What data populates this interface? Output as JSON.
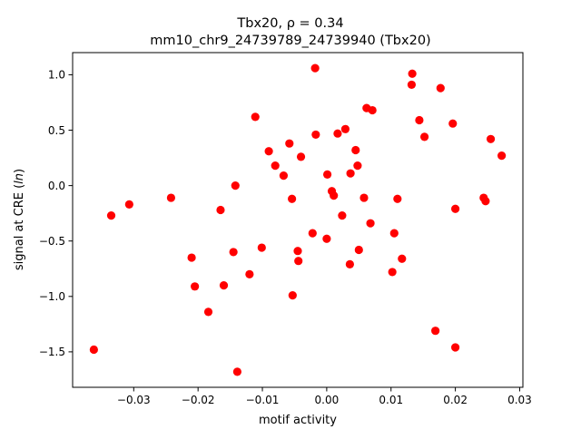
{
  "chart_data": {
    "type": "scatter",
    "title_line1": "Tbx20, ρ = 0.34",
    "title_line2": "mm10_chr9_24739789_24739940 (Tbx20)",
    "xlabel": "motif activity",
    "ylabel": "signal at CRE (ln)",
    "xlim": [
      -0.0395,
      0.0305
    ],
    "ylim": [
      -1.82,
      1.2
    ],
    "xticks": [
      -0.03,
      -0.02,
      -0.01,
      0.0,
      0.01,
      0.02,
      0.03
    ],
    "xtick_labels": [
      "−0.03",
      "−0.02",
      "−0.01",
      "0.00",
      "0.01",
      "0.02",
      "0.03"
    ],
    "yticks": [
      -1.5,
      -1.0,
      -0.5,
      0.0,
      0.5,
      1.0
    ],
    "ytick_labels": [
      "−1.5",
      "−1.0",
      "−0.5",
      "0.0",
      "0.5",
      "1.0"
    ],
    "grid": false,
    "marker_color": "#ff0000",
    "points": [
      {
        "x": -0.0362,
        "y": -1.48
      },
      {
        "x": -0.0335,
        "y": -0.27
      },
      {
        "x": -0.0307,
        "y": -0.17
      },
      {
        "x": -0.0242,
        "y": -0.11
      },
      {
        "x": -0.021,
        "y": -0.65
      },
      {
        "x": -0.0205,
        "y": -0.91
      },
      {
        "x": -0.0184,
        "y": -1.14
      },
      {
        "x": -0.0165,
        "y": -0.22
      },
      {
        "x": -0.016,
        "y": -0.9
      },
      {
        "x": -0.0145,
        "y": -0.6
      },
      {
        "x": -0.0142,
        "y": 0.0
      },
      {
        "x": -0.0139,
        "y": -1.68
      },
      {
        "x": -0.012,
        "y": -0.8
      },
      {
        "x": -0.0111,
        "y": 0.62
      },
      {
        "x": -0.0101,
        "y": -0.56
      },
      {
        "x": -0.009,
        "y": 0.31
      },
      {
        "x": -0.008,
        "y": 0.18
      },
      {
        "x": -0.0067,
        "y": 0.09
      },
      {
        "x": -0.0058,
        "y": 0.38
      },
      {
        "x": -0.0054,
        "y": -0.12
      },
      {
        "x": -0.0053,
        "y": -0.99
      },
      {
        "x": -0.0045,
        "y": -0.59
      },
      {
        "x": -0.0044,
        "y": -0.68
      },
      {
        "x": -0.004,
        "y": 0.26
      },
      {
        "x": -0.0022,
        "y": -0.43
      },
      {
        "x": -0.0018,
        "y": 1.06
      },
      {
        "x": -0.0017,
        "y": 0.46
      },
      {
        "x": 0.0,
        "y": -0.48
      },
      {
        "x": 0.0001,
        "y": 0.1
      },
      {
        "x": 0.0008,
        "y": -0.05
      },
      {
        "x": 0.0011,
        "y": -0.09
      },
      {
        "x": 0.0017,
        "y": 0.47
      },
      {
        "x": 0.0024,
        "y": -0.27
      },
      {
        "x": 0.0029,
        "y": 0.51
      },
      {
        "x": 0.0036,
        "y": -0.71
      },
      {
        "x": 0.0037,
        "y": 0.11
      },
      {
        "x": 0.0045,
        "y": 0.32
      },
      {
        "x": 0.0048,
        "y": 0.18
      },
      {
        "x": 0.005,
        "y": -0.58
      },
      {
        "x": 0.0058,
        "y": -0.11
      },
      {
        "x": 0.0062,
        "y": 0.7
      },
      {
        "x": 0.0068,
        "y": -0.34
      },
      {
        "x": 0.0071,
        "y": 0.68
      },
      {
        "x": 0.0102,
        "y": -0.78
      },
      {
        "x": 0.0105,
        "y": -0.43
      },
      {
        "x": 0.011,
        "y": -0.12
      },
      {
        "x": 0.0117,
        "y": -0.66
      },
      {
        "x": 0.0132,
        "y": 0.91
      },
      {
        "x": 0.0133,
        "y": 1.01
      },
      {
        "x": 0.0144,
        "y": 0.59
      },
      {
        "x": 0.0152,
        "y": 0.44
      },
      {
        "x": 0.0169,
        "y": -1.31
      },
      {
        "x": 0.0177,
        "y": 0.88
      },
      {
        "x": 0.0196,
        "y": 0.56
      },
      {
        "x": 0.02,
        "y": -0.21
      },
      {
        "x": 0.02,
        "y": -1.46
      },
      {
        "x": 0.0244,
        "y": -0.11
      },
      {
        "x": 0.0247,
        "y": -0.14
      },
      {
        "x": 0.0255,
        "y": 0.42
      },
      {
        "x": 0.0272,
        "y": 0.27
      }
    ]
  }
}
